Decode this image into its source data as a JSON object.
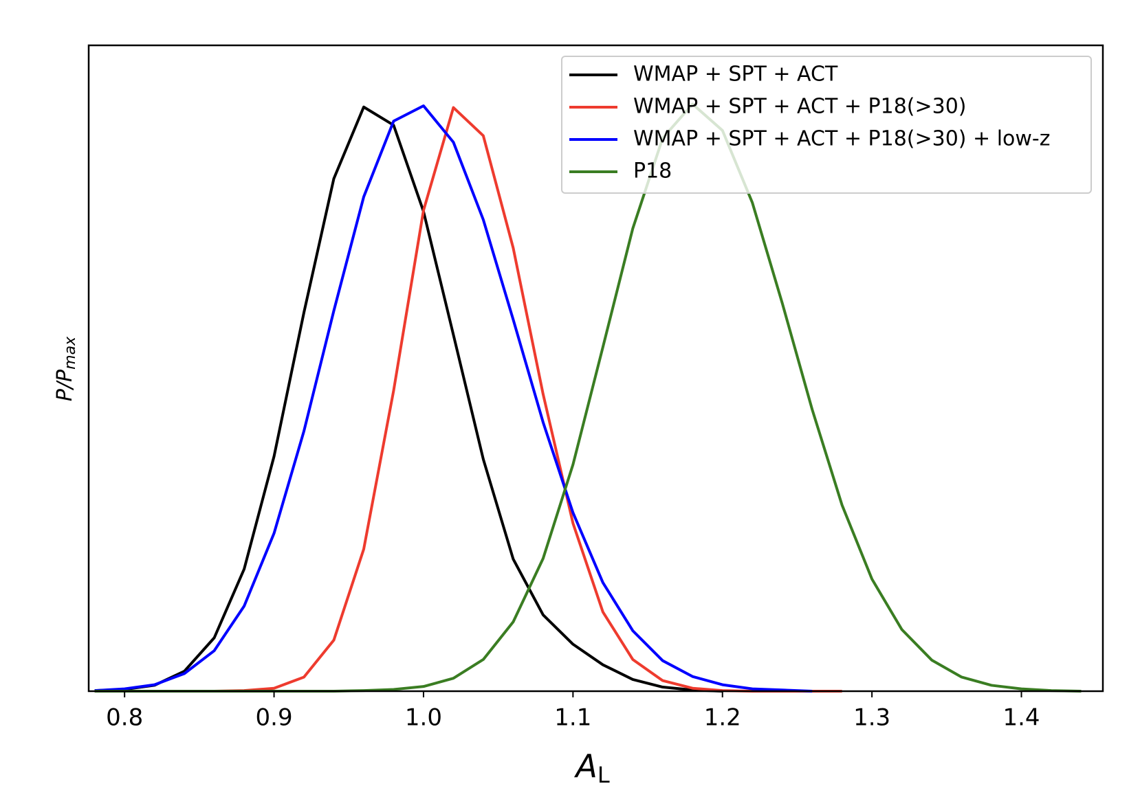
{
  "chart_data": {
    "type": "line",
    "xlabel": {
      "main": "A",
      "sub": "L"
    },
    "ylabel": {
      "main": "P/P",
      "sub": "max"
    },
    "x": [
      0.78,
      0.8,
      0.82,
      0.84,
      0.86,
      0.88,
      0.9,
      0.92,
      0.94,
      0.96,
      0.98,
      1.0,
      1.02,
      1.04,
      1.06,
      1.08,
      1.1,
      1.12,
      1.14,
      1.16,
      1.18,
      1.2,
      1.22,
      1.24,
      1.26,
      1.28,
      1.3,
      1.32,
      1.34,
      1.36,
      1.38,
      1.4,
      1.42,
      1.44
    ],
    "series": [
      {
        "name": "WMAP + SPT + ACT",
        "color": "#000000",
        "values": [
          0.001,
          0.003,
          0.01,
          0.034,
          0.091,
          0.208,
          0.4,
          0.645,
          0.873,
          0.995,
          0.964,
          0.817,
          0.607,
          0.395,
          0.225,
          0.13,
          0.08,
          0.045,
          0.02,
          0.007,
          0.002,
          0,
          null,
          null,
          null,
          null,
          null,
          null,
          null,
          null,
          null,
          null,
          null,
          null
        ]
      },
      {
        "name": "WMAP + SPT + ACT + P18(>30)",
        "color": "#ee3b2e",
        "values": [
          0,
          0,
          0,
          0,
          0,
          0.001,
          0.005,
          0.024,
          0.087,
          0.242,
          0.512,
          0.819,
          0.994,
          0.946,
          0.755,
          0.506,
          0.286,
          0.135,
          0.054,
          0.018,
          0.005,
          0.001,
          0,
          0,
          0,
          0,
          null,
          null,
          null,
          null,
          null,
          null,
          null,
          null
        ]
      },
      {
        "name": "WMAP + SPT + ACT + P18(>30) + low-z",
        "color": "#0000ff",
        "values": [
          0.001,
          0.004,
          0.011,
          0.03,
          0.069,
          0.145,
          0.269,
          0.443,
          0.648,
          0.842,
          0.971,
          0.997,
          0.935,
          0.803,
          0.633,
          0.458,
          0.304,
          0.185,
          0.103,
          0.052,
          0.025,
          0.011,
          0.004,
          0.002,
          0,
          null,
          null,
          null,
          null,
          null,
          null,
          null,
          null,
          null
        ]
      },
      {
        "name": "P18",
        "color": "#3a7d22",
        "values": [
          0,
          0,
          0,
          0,
          0,
          0,
          0,
          0,
          0,
          0.001,
          0.003,
          0.008,
          0.022,
          0.054,
          0.118,
          0.226,
          0.386,
          0.586,
          0.788,
          0.942,
          1.0,
          0.955,
          0.832,
          0.661,
          0.48,
          0.317,
          0.191,
          0.105,
          0.053,
          0.024,
          0.01,
          0.004,
          0.001,
          0
        ]
      }
    ],
    "xlim": [
      0.776,
      1.4545
    ],
    "ylim": [
      0,
      1.1
    ],
    "xticks": [
      0.8,
      0.9,
      {
        "value": 1,
        "label": "1.0"
      },
      1.1,
      1.2,
      1.3,
      1.4
    ],
    "legend": "upper right"
  }
}
